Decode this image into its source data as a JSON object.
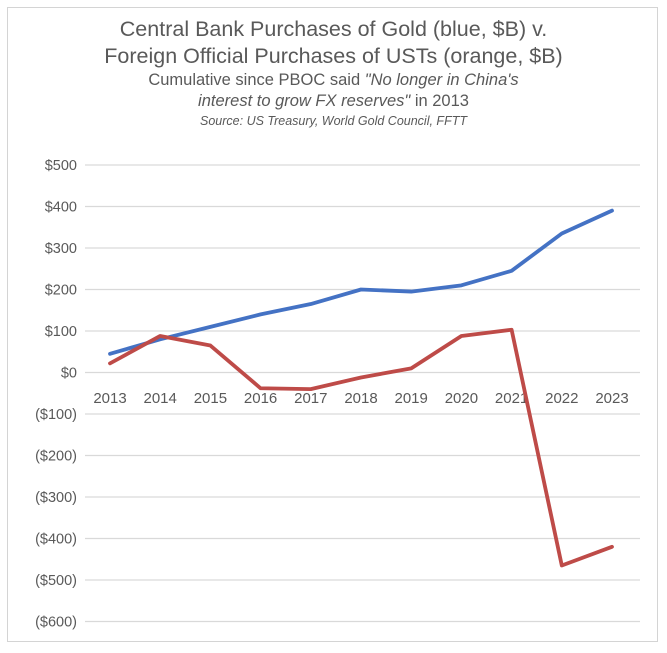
{
  "chart_data": {
    "type": "line",
    "title_line1": "Central Bank Purchases of Gold (blue, $B) v.",
    "title_line2": "Foreign Official Purchases of USTs (orange, $B)",
    "subtitle_prefix": "Cumulative since PBOC said ",
    "subtitle_quote_line1": "\"No longer in China's",
    "subtitle_quote_line2": "interest to grow FX reserves\"",
    "subtitle_suffix": " in 2013",
    "source": "Source: US Treasury, World Gold Council, FFTT",
    "categories": [
      "2013",
      "2014",
      "2015",
      "2016",
      "2017",
      "2018",
      "2019",
      "2020",
      "2021",
      "2022",
      "2023"
    ],
    "series": [
      {
        "slug": "gold",
        "name": "Central Bank Purchases of Gold ($B, cumulative)",
        "color": "#4472C4",
        "values": [
          45,
          80,
          110,
          140,
          165,
          200,
          195,
          210,
          245,
          335,
          390
        ]
      },
      {
        "slug": "usts",
        "name": "Foreign Official Purchases of USTs ($B, cumulative)",
        "color": "#BE4B48",
        "values": [
          22,
          88,
          65,
          -38,
          -40,
          -12,
          10,
          88,
          103,
          -465,
          -420
        ]
      }
    ],
    "yticks": [
      {
        "v": 500,
        "label": "$500"
      },
      {
        "v": 400,
        "label": "$400"
      },
      {
        "v": 300,
        "label": "$300"
      },
      {
        "v": 200,
        "label": "$200"
      },
      {
        "v": 100,
        "label": "$100"
      },
      {
        "v": 0,
        "label": "$0"
      },
      {
        "v": -100,
        "label": "($100)"
      },
      {
        "v": -200,
        "label": "($200)"
      },
      {
        "v": -300,
        "label": "($300)"
      },
      {
        "v": -400,
        "label": "($400)"
      },
      {
        "v": -500,
        "label": "($500)"
      },
      {
        "v": -600,
        "label": "($600)"
      }
    ],
    "ylim": [
      -600,
      500
    ],
    "ytick_step": 100,
    "xlabel": "",
    "ylabel": "",
    "grid": "horizontal",
    "legend": "none",
    "gridline_color": "#d9d9d9",
    "axis_label_color": "#595959",
    "frame_border_color": "#d4d4d4",
    "background_color": "#ffffff"
  }
}
